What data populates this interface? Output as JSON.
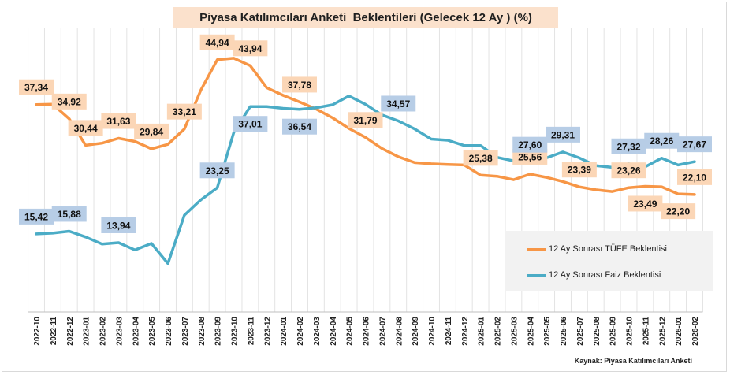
{
  "title": "Piyasa Katılımcıları Anketi  Beklentileri (Gelecek 12 Ay ) (%)",
  "source": "Kaynak: Piyasa Katılımcıları Anketi",
  "legend": {
    "items": [
      {
        "label": "12 Ay Sonrası TÜFE Beklentisi",
        "color": "#f79646"
      },
      {
        "label": "12 Ay Sonrası Faiz Beklentisi",
        "color": "#4bacc6"
      }
    ]
  },
  "chart_data": {
    "type": "line",
    "grid": "vertical",
    "legend_position": "bottom-right",
    "ylim": [
      0,
      50
    ],
    "categories": [
      "2022-10",
      "2022-11",
      "2022-12",
      "2023-01",
      "2023-02",
      "2023-03",
      "2023-04",
      "2023-05",
      "2023-06",
      "2023-07",
      "2023-08",
      "2023-09",
      "2023-10",
      "2023-11",
      "2023-12",
      "2024-01",
      "2024-02",
      "2024-03",
      "2024-04",
      "2024-05",
      "2024-06",
      "2024-07",
      "2024-08",
      "2024-09",
      "2024-10",
      "2024-11",
      "2024-12",
      "2025-01",
      "2025-02",
      "2025-03",
      "2025-04",
      "2025-05",
      "2025-06",
      "2025-07",
      "2025-08",
      "2025-09",
      "2025-10",
      "2025-11",
      "2025-12",
      "2026-01",
      "2026-02"
    ],
    "series": [
      {
        "name": "12 Ay Sonrası TÜFE Beklentisi",
        "color": "#f79646",
        "values": [
          37.34,
          37.4,
          34.92,
          30.44,
          30.8,
          31.63,
          31.1,
          29.84,
          30.6,
          33.21,
          39.8,
          44.94,
          45.2,
          43.94,
          40.2,
          38.9,
          37.78,
          36.6,
          35.1,
          33.3,
          31.79,
          29.9,
          28.5,
          27.5,
          27.3,
          27.2,
          27.1,
          25.38,
          25.2,
          24.6,
          25.56,
          25.0,
          24.3,
          23.39,
          22.9,
          22.6,
          23.26,
          23.49,
          23.4,
          22.2,
          22.1
        ]
      },
      {
        "name": "12 Ay Sonrası Faiz Beklentisi",
        "color": "#4bacc6",
        "values": [
          15.42,
          15.55,
          15.88,
          14.9,
          13.7,
          13.94,
          12.7,
          13.8,
          10.4,
          18.6,
          21.2,
          23.25,
          32.6,
          37.01,
          37.0,
          36.7,
          36.54,
          36.8,
          37.3,
          38.8,
          37.4,
          35.6,
          34.57,
          33.2,
          31.5,
          31.3,
          30.4,
          30.4,
          28.4,
          27.8,
          27.6,
          28.3,
          29.31,
          28.3,
          27.0,
          26.7,
          27.32,
          26.8,
          28.26,
          27.1,
          27.67
        ]
      }
    ],
    "data_labels": [
      {
        "series": 0,
        "index": 0,
        "text": "37,34",
        "pos": "above"
      },
      {
        "series": 0,
        "index": 2,
        "text": "34,92",
        "pos": "above"
      },
      {
        "series": 0,
        "index": 3,
        "text": "30,44",
        "pos": "above"
      },
      {
        "series": 0,
        "index": 5,
        "text": "31,63",
        "pos": "above"
      },
      {
        "series": 0,
        "index": 7,
        "text": "29,84",
        "pos": "above"
      },
      {
        "series": 0,
        "index": 9,
        "text": "33,21",
        "pos": "above"
      },
      {
        "series": 0,
        "index": 11,
        "text": "44,94",
        "pos": "above"
      },
      {
        "series": 0,
        "index": 13,
        "text": "43,94",
        "pos": "above"
      },
      {
        "series": 0,
        "index": 16,
        "text": "37,78",
        "pos": "above"
      },
      {
        "series": 0,
        "index": 20,
        "text": "31,79",
        "pos": "above"
      },
      {
        "series": 0,
        "index": 27,
        "text": "25,38",
        "pos": "above"
      },
      {
        "series": 0,
        "index": 30,
        "text": "25,56",
        "pos": "above"
      },
      {
        "series": 0,
        "index": 33,
        "text": "23,39",
        "pos": "above"
      },
      {
        "series": 0,
        "index": 36,
        "text": "23,26",
        "pos": "above"
      },
      {
        "series": 0,
        "index": 37,
        "text": "23,49",
        "pos": "below"
      },
      {
        "series": 0,
        "index": 39,
        "text": "22,20",
        "pos": "below"
      },
      {
        "series": 0,
        "index": 40,
        "text": "22,10",
        "pos": "above"
      },
      {
        "series": 1,
        "index": 0,
        "text": "15,42",
        "pos": "above"
      },
      {
        "series": 1,
        "index": 2,
        "text": "15,88",
        "pos": "above"
      },
      {
        "series": 1,
        "index": 5,
        "text": "13,94",
        "pos": "above"
      },
      {
        "series": 1,
        "index": 11,
        "text": "23,25",
        "pos": "above"
      },
      {
        "series": 1,
        "index": 13,
        "text": "37,01",
        "pos": "below"
      },
      {
        "series": 1,
        "index": 16,
        "text": "36,54",
        "pos": "below"
      },
      {
        "series": 1,
        "index": 22,
        "text": "34,57",
        "pos": "above"
      },
      {
        "series": 1,
        "index": 30,
        "text": "27,60",
        "pos": "above"
      },
      {
        "series": 1,
        "index": 32,
        "text": "29,31",
        "pos": "above"
      },
      {
        "series": 1,
        "index": 36,
        "text": "27,32",
        "pos": "above"
      },
      {
        "series": 1,
        "index": 38,
        "text": "28,26",
        "pos": "above"
      },
      {
        "series": 1,
        "index": 40,
        "text": "27,67",
        "pos": "above"
      }
    ]
  }
}
